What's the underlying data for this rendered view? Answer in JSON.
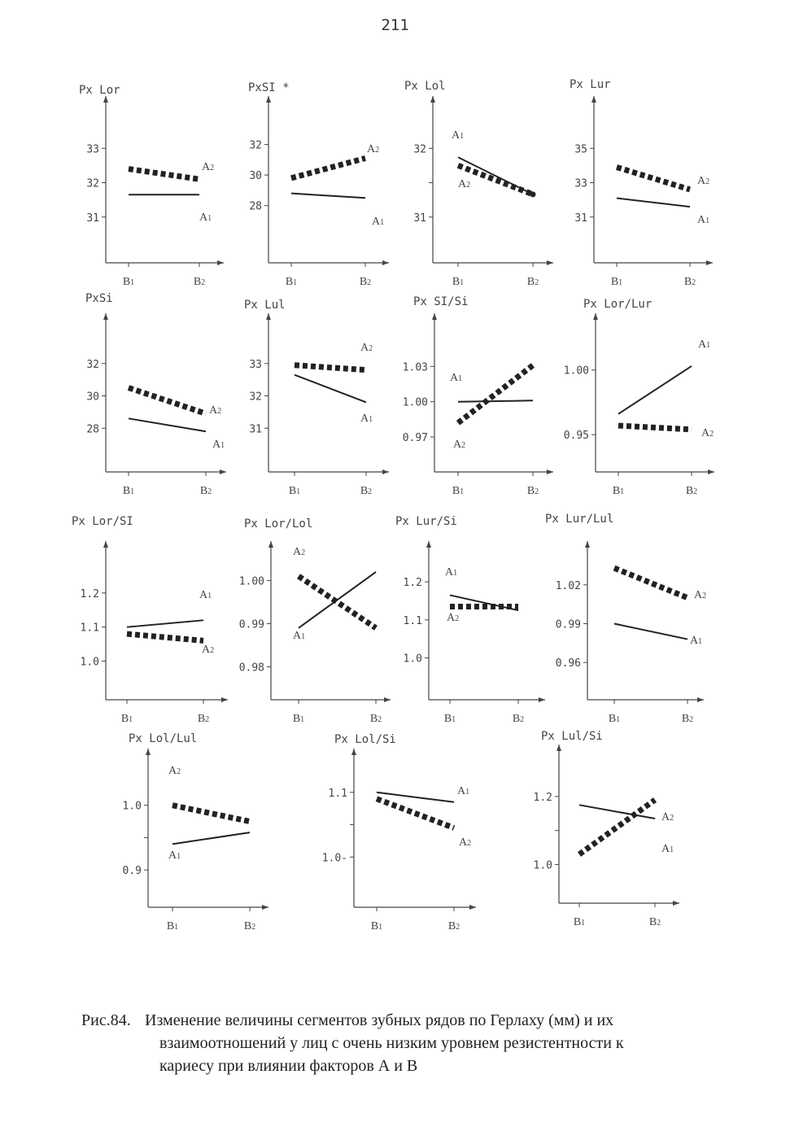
{
  "page_number": "211",
  "caption": {
    "label": "Рис.84.",
    "line1": "Изменение величины сегментов зубных рядов по Герлаху (мм) и их",
    "line2": "взаимоотношений у лиц с очень низким уровнем резистентности к",
    "line3": "кариесу при влиянии  факторов А и В"
  },
  "colors": {
    "axis": "#444444",
    "line": "#222222"
  },
  "chart_data": [
    {
      "type": "line",
      "title": "Px Lor",
      "categories": [
        "B1",
        "B2"
      ],
      "ylim": [
        30,
        34
      ],
      "yticks": [
        31,
        32,
        33
      ],
      "yticklabels": [
        "31",
        "32",
        "33"
      ],
      "series": [
        {
          "name": "A1",
          "style": "solid",
          "values": [
            31.65,
            31.65
          ]
        },
        {
          "name": "A2",
          "style": "dotted",
          "values": [
            32.4,
            32.1
          ]
        }
      ]
    },
    {
      "type": "line",
      "title": "PxSI *",
      "categories": [
        "B1",
        "B2"
      ],
      "ylim": [
        25,
        34
      ],
      "yticks": [
        28,
        30,
        32
      ],
      "yticklabels": [
        "28",
        "30",
        "32"
      ],
      "series": [
        {
          "name": "A1",
          "style": "solid",
          "values": [
            28.8,
            28.5
          ]
        },
        {
          "name": "A2",
          "style": "dotted",
          "values": [
            29.8,
            31.1
          ]
        }
      ]
    },
    {
      "type": "line",
      "title": "Px Lol",
      "categories": [
        "B1",
        "B2"
      ],
      "ylim": [
        30.5,
        32.5
      ],
      "yticks": [
        31,
        31.5,
        32
      ],
      "yticklabels": [
        "31",
        "",
        "32"
      ],
      "series": [
        {
          "name": "A1",
          "style": "solid",
          "values": [
            31.87,
            31.33
          ]
        },
        {
          "name": "A2",
          "style": "dotted",
          "values": [
            31.75,
            31.33
          ]
        }
      ]
    },
    {
      "type": "line",
      "title": "Px Lur",
      "categories": [
        "B1",
        "B2"
      ],
      "ylim": [
        29,
        37
      ],
      "yticks": [
        31,
        33,
        35
      ],
      "yticklabels": [
        "31",
        "33",
        "35"
      ],
      "series": [
        {
          "name": "A1",
          "style": "solid",
          "values": [
            32.1,
            31.6
          ]
        },
        {
          "name": "A2",
          "style": "dotted",
          "values": [
            33.9,
            32.6
          ]
        }
      ]
    },
    {
      "type": "line",
      "title": "PxSi",
      "categories": [
        "B1",
        "B2"
      ],
      "ylim": [
        26,
        34
      ],
      "yticks": [
        28,
        30,
        32
      ],
      "yticklabels": [
        "28",
        "30",
        "32"
      ],
      "series": [
        {
          "name": "A1",
          "style": "solid",
          "values": [
            28.6,
            27.8
          ]
        },
        {
          "name": "A2",
          "style": "dotted",
          "values": [
            30.5,
            28.9
          ]
        }
      ]
    },
    {
      "type": "line",
      "title": "Px Lul",
      "categories": [
        "B1",
        "B2"
      ],
      "ylim": [
        30,
        34
      ],
      "yticks": [
        31,
        32,
        33
      ],
      "yticklabels": [
        "31",
        "32",
        "33"
      ],
      "series": [
        {
          "name": "A1",
          "style": "solid",
          "values": [
            32.65,
            31.8
          ]
        },
        {
          "name": "A2",
          "style": "dotted",
          "values": [
            32.95,
            32.8
          ]
        }
      ]
    },
    {
      "type": "line",
      "title": "Px SI/Si",
      "categories": [
        "B1",
        "B2"
      ],
      "ylim": [
        0.95,
        1.06
      ],
      "yticks": [
        0.97,
        1.0,
        1.03
      ],
      "yticklabels": [
        "0.97",
        "1.00",
        "1.03"
      ],
      "series": [
        {
          "name": "A1",
          "style": "solid",
          "values": [
            1.0,
            1.001
          ]
        },
        {
          "name": "A2",
          "style": "dotted",
          "values": [
            0.982,
            1.031
          ]
        }
      ]
    },
    {
      "type": "line",
      "title": "Px Lor/Lur",
      "categories": [
        "B1",
        "B2"
      ],
      "ylim": [
        0.93,
        1.03
      ],
      "yticks": [
        0.95,
        1.0
      ],
      "yticklabels": [
        "0.95",
        "1.00"
      ],
      "series": [
        {
          "name": "A1",
          "style": "solid",
          "values": [
            0.966,
            1.003
          ]
        },
        {
          "name": "A2",
          "style": "dotted",
          "values": [
            0.957,
            0.954
          ]
        }
      ]
    },
    {
      "type": "line",
      "title": "Px Lor/SI",
      "categories": [
        "B1",
        "B2"
      ],
      "ylim": [
        0.92,
        1.3
      ],
      "yticks": [
        1.0,
        1.1,
        1.2
      ],
      "yticklabels": [
        "1.0",
        "1.1",
        "1.2"
      ],
      "series": [
        {
          "name": "A1",
          "style": "solid",
          "values": [
            1.1,
            1.12
          ]
        },
        {
          "name": "A2",
          "style": "dotted",
          "values": [
            1.08,
            1.06
          ]
        }
      ]
    },
    {
      "type": "line",
      "title": "Px Lor/Lol",
      "categories": [
        "B1",
        "B2"
      ],
      "ylim": [
        0.975,
        1.005
      ],
      "yticks": [
        0.98,
        0.99,
        1.0
      ],
      "yticklabels": [
        "0.98",
        "0.99",
        "1.00"
      ],
      "series": [
        {
          "name": "A1",
          "style": "solid",
          "values": [
            0.989,
            1.002
          ]
        },
        {
          "name": "A2",
          "style": "dotted",
          "values": [
            1.001,
            0.989
          ]
        }
      ]
    },
    {
      "type": "line",
      "title": "Px Lur/Si",
      "categories": [
        "B1",
        "B2"
      ],
      "ylim": [
        0.92,
        1.26
      ],
      "yticks": [
        1.0,
        1.1,
        1.2
      ],
      "yticklabels": [
        "1.0",
        "1.1",
        "1.2"
      ],
      "series": [
        {
          "name": "A1",
          "style": "solid",
          "values": [
            1.165,
            1.125
          ]
        },
        {
          "name": "A2",
          "style": "dotted",
          "values": [
            1.135,
            1.135
          ]
        }
      ]
    },
    {
      "type": "line",
      "title": "Px Lur/Lul",
      "categories": [
        "B1",
        "B2"
      ],
      "ylim": [
        0.94,
        1.04
      ],
      "yticks": [
        0.96,
        0.99,
        1.02
      ],
      "yticklabels": [
        "0.96",
        "0.99",
        "1.02"
      ],
      "series": [
        {
          "name": "A1",
          "style": "solid",
          "values": [
            0.99,
            0.978
          ]
        },
        {
          "name": "A2",
          "style": "dotted",
          "values": [
            1.033,
            1.01
          ]
        }
      ]
    },
    {
      "type": "line",
      "title": "Px Lol/Lul",
      "categories": [
        "B1",
        "B2"
      ],
      "ylim": [
        0.86,
        1.06
      ],
      "yticks": [
        0.9,
        0.95,
        1.0
      ],
      "yticklabels": [
        "0.9",
        "",
        "1.0"
      ],
      "series": [
        {
          "name": "A1",
          "style": "solid",
          "values": [
            0.94,
            0.958
          ]
        },
        {
          "name": "A2",
          "style": "dotted",
          "values": [
            1.0,
            0.975
          ]
        }
      ]
    },
    {
      "type": "line",
      "title": "Px Lol/Si",
      "categories": [
        "B1",
        "B2"
      ],
      "ylim": [
        0.94,
        1.14
      ],
      "yticks": [
        1.0,
        1.05,
        1.1
      ],
      "yticklabels": [
        "1.0-",
        "",
        "1.1"
      ],
      "series": [
        {
          "name": "A1",
          "style": "solid",
          "values": [
            1.1,
            1.085
          ]
        },
        {
          "name": "A2",
          "style": "dotted",
          "values": [
            1.09,
            1.045
          ]
        }
      ]
    },
    {
      "type": "line",
      "title": "Px Lul/Si",
      "categories": [
        "B1",
        "B2"
      ],
      "ylim": [
        0.92,
        1.3
      ],
      "yticks": [
        1.0,
        1.1,
        1.2
      ],
      "yticklabels": [
        "1.0",
        "",
        "1.2"
      ],
      "series": [
        {
          "name": "A1",
          "style": "solid",
          "values": [
            1.175,
            1.135
          ]
        },
        {
          "name": "A2",
          "style": "dotted",
          "values": [
            1.03,
            1.19
          ]
        }
      ]
    }
  ]
}
